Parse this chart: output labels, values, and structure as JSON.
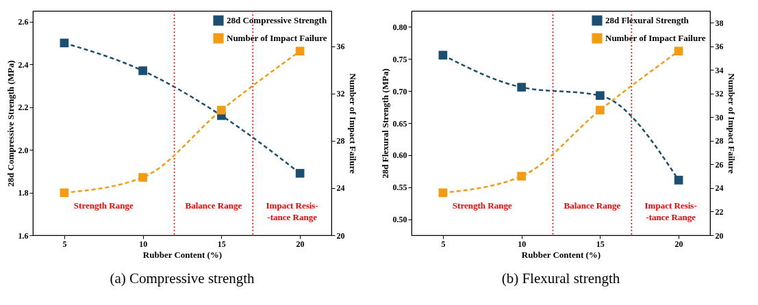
{
  "chart_data": [
    {
      "type": "line",
      "title": "(a) Compressive strength",
      "xlabel": "Rubber Content (%)",
      "ylabel": "28d Compressive Strength (MPa)",
      "y2label": "Number of Impact Failure",
      "x": [
        5,
        10,
        15,
        20
      ],
      "xlim": [
        3,
        22
      ],
      "xticks": [
        5,
        10,
        15,
        20
      ],
      "ylim": [
        1.6,
        2.65
      ],
      "yticks": [
        1.6,
        1.8,
        {
          "value": 2,
          "label": "2.0"
        },
        2.2,
        2.4,
        2.6
      ],
      "y2lim": [
        20,
        39
      ],
      "y2ticks": [
        20,
        24,
        28,
        32,
        36
      ],
      "series": [
        {
          "name": "28d Compressive Strength",
          "color": "#1b4f72",
          "values": [
            2.5,
            2.37,
            2.16,
            1.89
          ]
        },
        {
          "name": "Number of Impact Failure",
          "color": "#f39c12",
          "values": [
            23.6,
            24.9,
            30.6,
            35.6
          ],
          "axis": "y2"
        }
      ],
      "ref_lines": [
        {
          "axis": "x",
          "value": 12,
          "color": "#ff0000",
          "line_style": "dotted"
        },
        {
          "axis": "x",
          "value": 17,
          "color": "#ff0000",
          "line_style": "dotted"
        }
      ],
      "annotations": [
        "Strength Range",
        "Balance Range",
        "Impact Resis-\n-tance Range"
      ],
      "marker": "square",
      "line_style": "dashed",
      "legend": "top right",
      "grid": false
    },
    {
      "type": "line",
      "title": "(b) Flexural strength",
      "xlabel": "Rubber Content (%)",
      "ylabel": "28d Flexural Strength (MPa)",
      "y2label": "Number of Impact Failure",
      "x": [
        5,
        10,
        15,
        20
      ],
      "xlim": [
        3,
        22
      ],
      "xticks": [
        5,
        10,
        15,
        20
      ],
      "ylim": [
        0.475,
        0.825
      ],
      "yticks": [
        {
          "value": 0.5,
          "label": "0.50"
        },
        0.55,
        {
          "value": 0.6,
          "label": "0.60"
        },
        0.65,
        {
          "value": 0.7,
          "label": "0.70"
        },
        0.75,
        {
          "value": 0.8,
          "label": "0.80"
        }
      ],
      "y2lim": [
        20,
        39
      ],
      "y2ticks": [
        20,
        22,
        24,
        26,
        28,
        30,
        32,
        34,
        36,
        38
      ],
      "series": [
        {
          "name": "28d Flexural Strength",
          "color": "#1b4f72",
          "values": [
            0.756,
            0.706,
            0.693,
            0.561
          ]
        },
        {
          "name": "Number of Impact Failure",
          "color": "#f39c12",
          "values": [
            23.6,
            25.0,
            30.6,
            35.6
          ],
          "axis": "y2"
        }
      ],
      "ref_lines": [
        {
          "axis": "x",
          "value": 12,
          "color": "#ff0000",
          "line_style": "dotted"
        },
        {
          "axis": "x",
          "value": 17,
          "color": "#ff0000",
          "line_style": "dotted"
        }
      ],
      "annotations": [
        "Strength Range",
        "Balance Range",
        "Impact Resis-\n-tance Range"
      ],
      "marker": "square",
      "line_style": "dashed",
      "legend": "top right",
      "grid": false
    }
  ]
}
